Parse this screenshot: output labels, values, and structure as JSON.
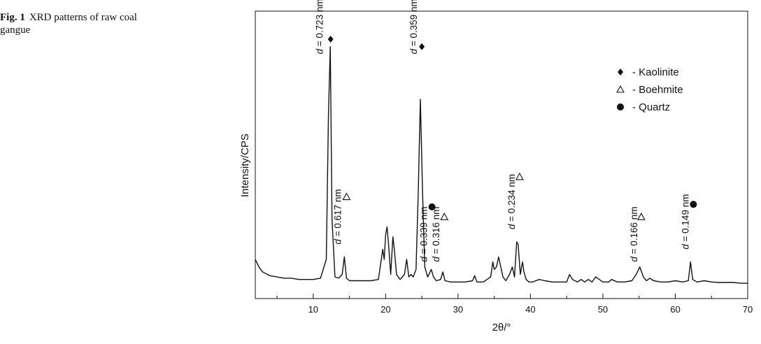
{
  "caption": {
    "label": "Fig. 1",
    "text": "XRD patterns of raw coal gangue"
  },
  "chart_data": {
    "type": "line",
    "title": "",
    "xlabel": "2θ/°",
    "ylabel": "Intensity/CPS",
    "xlim": [
      2,
      70
    ],
    "ylim": [
      0,
      100
    ],
    "xticks": [
      10,
      20,
      30,
      40,
      50,
      60,
      70
    ],
    "yticks": [],
    "grid": false,
    "legend": {
      "position": "top-right",
      "entries": [
        {
          "marker": "diamond",
          "label": "- Kaolinite"
        },
        {
          "marker": "triangle",
          "label": "- Boehmite"
        },
        {
          "marker": "circle",
          "label": "- Quartz"
        }
      ]
    },
    "series": [
      {
        "color": "#111111",
        "x": [
          2,
          2.5,
          3,
          4,
          5,
          6,
          7,
          8,
          9,
          10,
          11,
          11.8,
          12.1,
          12.35,
          12.6,
          13,
          13.5,
          14,
          14.3,
          14.6,
          15,
          16,
          17,
          18,
          19,
          19.6,
          19.8,
          20.0,
          20.2,
          20.4,
          20.7,
          21.0,
          21.2,
          21.5,
          22,
          22.6,
          22.9,
          23.2,
          23.5,
          23.8,
          24.2,
          24.5,
          24.8,
          25.1,
          25.4,
          25.8,
          26.3,
          26.6,
          27,
          27.6,
          27.9,
          28.2,
          29,
          30,
          31,
          32,
          32.3,
          32.6,
          33.5,
          34.5,
          34.8,
          35.0,
          35.3,
          35.6,
          35.9,
          36.2,
          36.6,
          37.1,
          37.5,
          37.8,
          38.1,
          38.3,
          38.6,
          38.9,
          39.1,
          39.4,
          39.8,
          40.3,
          41.2,
          42,
          43,
          44,
          45,
          45.4,
          45.8,
          46.5,
          47,
          47.5,
          48,
          48.5,
          49,
          49.5,
          50,
          50.8,
          51.2,
          52,
          53,
          54,
          54.6,
          55.1,
          55.6,
          56,
          56.5,
          57,
          58,
          59,
          60,
          61,
          61.8,
          62.1,
          62.4,
          63,
          64,
          65,
          66,
          67,
          68,
          69,
          70
        ],
        "y": [
          12,
          9,
          7,
          5.5,
          5,
          4.5,
          4.5,
          4,
          4,
          4,
          4.5,
          12,
          70,
          97,
          28,
          5,
          4.5,
          6,
          13,
          4.5,
          3.5,
          3.5,
          3.5,
          3.5,
          4,
          16,
          12,
          22,
          25,
          18,
          6,
          21,
          16,
          6,
          4,
          6,
          12,
          5,
          6,
          5,
          8,
          38,
          76,
          38,
          9,
          5,
          8,
          5,
          3.5,
          4,
          7,
          3.5,
          3,
          3,
          3,
          3.5,
          5.5,
          3,
          3,
          5,
          11,
          8,
          9,
          13,
          9,
          5,
          3.5,
          6,
          9,
          5,
          19,
          18,
          6,
          11,
          7,
          4,
          3,
          3,
          4,
          3.5,
          3,
          3,
          3,
          6,
          4,
          3,
          4,
          3,
          4,
          3,
          5,
          4,
          3,
          3,
          4,
          3,
          3,
          3.5,
          6,
          9,
          5,
          3.5,
          4.5,
          3.5,
          3,
          3,
          3.5,
          3,
          3.5,
          11,
          4,
          3,
          3.5,
          3,
          2.8,
          2.8,
          2.8,
          2.5,
          2.5
        ]
      }
    ],
    "markers": [
      {
        "type": "diamond",
        "x": 12.4,
        "y": 100
      },
      {
        "type": "diamond",
        "x": 25.0,
        "y": 97
      },
      {
        "type": "triangle",
        "x": 14.6,
        "y": 37
      },
      {
        "type": "triangle",
        "x": 28.1,
        "y": 29
      },
      {
        "type": "triangle",
        "x": 38.5,
        "y": 45
      },
      {
        "type": "triangle",
        "x": 55.3,
        "y": 29
      },
      {
        "type": "circle",
        "x": 26.4,
        "y": 33
      },
      {
        "type": "circle",
        "x": 62.5,
        "y": 34
      }
    ],
    "annotations": [
      {
        "x": 12.1,
        "y": 94,
        "text": "d = 0.723 nm",
        "italic_prefix": "d",
        "rest": " = 0.723 nm"
      },
      {
        "x": 14.6,
        "y": 18,
        "text": "d = 0.617 nm",
        "italic_prefix": "d",
        "rest": " = 0.617 nm"
      },
      {
        "x": 25.1,
        "y": 94,
        "text": "d = 0.359 nm",
        "italic_prefix": "d",
        "rest": " = 0.359 nm"
      },
      {
        "x": 26.5,
        "y": 11,
        "text": "d = 0.339 nm",
        "italic_prefix": "d",
        "rest": " = 0.339 nm"
      },
      {
        "x": 28.2,
        "y": 11,
        "text": "d = 0.316 nm",
        "italic_prefix": "d",
        "rest": " = 0.316 nm"
      },
      {
        "x": 38.6,
        "y": 24,
        "text": "d = 0.234 nm",
        "italic_prefix": "d",
        "rest": " = 0.234 nm"
      },
      {
        "x": 55.5,
        "y": 11,
        "text": "d = 0.166 nm",
        "italic_prefix": "d",
        "rest": " = 0.166 nm"
      },
      {
        "x": 62.6,
        "y": 16,
        "text": "d = 0.149 nm",
        "italic_prefix": "d",
        "rest": " = 0.149 nm"
      }
    ]
  }
}
